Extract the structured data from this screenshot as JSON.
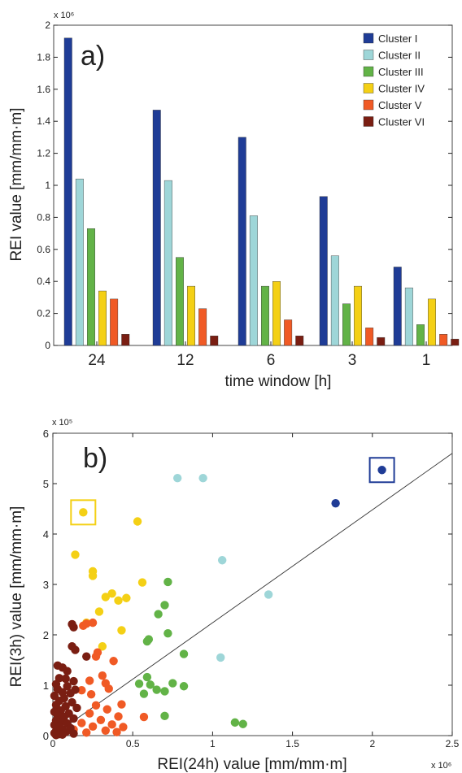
{
  "colors": {
    "Cluster I": "#1f3c96",
    "Cluster II": "#9ed6d8",
    "Cluster III": "#62b347",
    "Cluster IV": "#f4d015",
    "Cluster V": "#f05a25",
    "Cluster VI": "#7a1e12",
    "axis": "#222222",
    "frame": "#444444"
  },
  "chart_data": [
    {
      "type": "bar",
      "panel_label": "a)",
      "xlabel": "time window [h]",
      "ylabel": "REI value [mm/mm·m]",
      "y_multiplier": "x 10⁶",
      "ylim": [
        0,
        2
      ],
      "yticks": [
        0,
        0.2,
        0.4,
        0.6,
        0.8,
        1,
        1.2,
        1.4,
        1.6,
        1.8,
        2
      ],
      "ytick_labels": [
        "0",
        "0.2",
        "0.4",
        "0.6",
        "0.8",
        "1",
        "1.2",
        "1.4",
        "1.6",
        "1.8",
        "2"
      ],
      "categories": [
        "24",
        "12",
        "6",
        "3",
        "1"
      ],
      "legend_position": "top-right",
      "grid": false,
      "series": [
        {
          "name": "Cluster I",
          "values": [
            1.92,
            1.47,
            1.3,
            0.93,
            0.49
          ]
        },
        {
          "name": "Cluster II",
          "values": [
            1.04,
            1.03,
            0.81,
            0.56,
            0.36
          ]
        },
        {
          "name": "Cluster III",
          "values": [
            0.73,
            0.55,
            0.37,
            0.26,
            0.13
          ]
        },
        {
          "name": "Cluster IV",
          "values": [
            0.34,
            0.37,
            0.4,
            0.37,
            0.29
          ]
        },
        {
          "name": "Cluster V",
          "values": [
            0.29,
            0.23,
            0.16,
            0.11,
            0.07
          ]
        },
        {
          "name": "Cluster VI",
          "values": [
            0.07,
            0.06,
            0.06,
            0.05,
            0.04
          ]
        }
      ]
    },
    {
      "type": "scatter",
      "panel_label": "b)",
      "xlabel": "REI(24h) value [mm/mm·m]",
      "ylabel": "REI(3h) value [mm/mm·m]",
      "x_multiplier": "x 10⁶",
      "y_multiplier": "x 10⁵",
      "xlim": [
        0,
        2.5
      ],
      "ylim": [
        0,
        6
      ],
      "xticks": [
        0,
        0.5,
        1,
        1.5,
        2,
        2.5
      ],
      "xtick_labels": [
        "0",
        "0.5",
        "1",
        "1.5",
        "2",
        "2.5"
      ],
      "yticks": [
        0,
        1,
        2,
        3,
        4,
        5,
        6
      ],
      "ytick_labels": [
        "0",
        "1",
        "2",
        "3",
        "4",
        "5",
        "6"
      ],
      "grid": false,
      "reference_line": {
        "x": [
          0,
          2.5
        ],
        "y": [
          0,
          5.6
        ]
      },
      "highlight_boxes": [
        {
          "series": "Cluster I",
          "x": 2.06,
          "y": 5.27
        },
        {
          "series": "Cluster IV",
          "x": 0.19,
          "y": 4.43
        }
      ],
      "series": [
        {
          "name": "Cluster I",
          "points": [
            [
              2.06,
              5.27
            ],
            [
              1.77,
              4.61
            ]
          ]
        },
        {
          "name": "Cluster II",
          "points": [
            [
              0.78,
              5.11
            ],
            [
              0.94,
              5.11
            ],
            [
              1.06,
              3.48
            ],
            [
              1.35,
              2.8
            ],
            [
              1.05,
              1.55
            ]
          ]
        },
        {
          "name": "Cluster III",
          "points": [
            [
              0.72,
              3.05
            ],
            [
              0.7,
              2.59
            ],
            [
              0.66,
              2.41
            ],
            [
              0.72,
              2.03
            ],
            [
              0.6,
              1.91
            ],
            [
              0.59,
              1.87
            ],
            [
              0.82,
              1.62
            ],
            [
              0.59,
              1.16
            ],
            [
              0.54,
              1.03
            ],
            [
              0.61,
              1.01
            ],
            [
              0.75,
              1.04
            ],
            [
              0.82,
              0.98
            ],
            [
              0.65,
              0.91
            ],
            [
              0.7,
              0.88
            ],
            [
              0.57,
              0.83
            ],
            [
              0.7,
              0.39
            ],
            [
              1.14,
              0.26
            ],
            [
              1.19,
              0.23
            ]
          ]
        },
        {
          "name": "Cluster IV",
          "points": [
            [
              0.19,
              4.43
            ],
            [
              0.53,
              4.25
            ],
            [
              0.14,
              3.59
            ],
            [
              0.25,
              3.26
            ],
            [
              0.25,
              3.17
            ],
            [
              0.56,
              3.04
            ],
            [
              0.37,
              2.82
            ],
            [
              0.33,
              2.75
            ],
            [
              0.46,
              2.73
            ],
            [
              0.41,
              2.68
            ],
            [
              0.29,
              2.46
            ],
            [
              0.21,
              2.24
            ],
            [
              0.43,
              2.09
            ],
            [
              0.31,
              1.77
            ]
          ]
        },
        {
          "name": "Cluster V",
          "points": [
            [
              0.21,
              2.22
            ],
            [
              0.25,
              2.24
            ],
            [
              0.19,
              2.18
            ],
            [
              0.28,
              1.65
            ],
            [
              0.27,
              1.57
            ],
            [
              0.38,
              1.48
            ],
            [
              0.31,
              1.19
            ],
            [
              0.23,
              1.09
            ],
            [
              0.33,
              1.04
            ],
            [
              0.35,
              0.93
            ],
            [
              0.18,
              0.9
            ],
            [
              0.24,
              0.82
            ],
            [
              0.43,
              0.62
            ],
            [
              0.27,
              0.6
            ],
            [
              0.34,
              0.52
            ],
            [
              0.23,
              0.44
            ],
            [
              0.41,
              0.38
            ],
            [
              0.3,
              0.31
            ],
            [
              0.57,
              0.37
            ],
            [
              0.18,
              0.25
            ],
            [
              0.37,
              0.22
            ],
            [
              0.25,
              0.18
            ],
            [
              0.44,
              0.17
            ],
            [
              0.13,
              0.12
            ],
            [
              0.33,
              0.1
            ],
            [
              0.21,
              0.06
            ],
            [
              0.4,
              0.07
            ]
          ]
        },
        {
          "name": "Cluster VI",
          "points": [
            [
              0.12,
              2.21
            ],
            [
              0.13,
              2.15
            ],
            [
              0.12,
              1.77
            ],
            [
              0.14,
              1.7
            ],
            [
              0.21,
              1.57
            ],
            [
              0.03,
              1.39
            ],
            [
              0.06,
              1.35
            ],
            [
              0.09,
              1.28
            ],
            [
              0.04,
              1.14
            ],
            [
              0.08,
              1.13
            ],
            [
              0.13,
              1.08
            ],
            [
              0.02,
              1.02
            ],
            [
              0.09,
              0.98
            ],
            [
              0.03,
              0.92
            ],
            [
              0.14,
              0.91
            ],
            [
              0.06,
              0.86
            ],
            [
              0.11,
              0.84
            ],
            [
              0.01,
              0.79
            ],
            [
              0.07,
              0.74
            ],
            [
              0.04,
              0.69
            ],
            [
              0.12,
              0.66
            ],
            [
              0.02,
              0.61
            ],
            [
              0.08,
              0.58
            ],
            [
              0.15,
              0.55
            ],
            [
              0.05,
              0.5
            ],
            [
              0.01,
              0.47
            ],
            [
              0.1,
              0.44
            ],
            [
              0.03,
              0.4
            ],
            [
              0.07,
              0.37
            ],
            [
              0.13,
              0.34
            ],
            [
              0.02,
              0.3
            ],
            [
              0.05,
              0.27
            ],
            [
              0.09,
              0.24
            ],
            [
              0.01,
              0.21
            ],
            [
              0.04,
              0.18
            ],
            [
              0.11,
              0.15
            ],
            [
              0.06,
              0.12
            ],
            [
              0.02,
              0.09
            ],
            [
              0.08,
              0.07
            ],
            [
              0.01,
              0.05
            ],
            [
              0.04,
              0.03
            ],
            [
              0.13,
              0.04
            ],
            [
              0.06,
              0.02
            ],
            [
              0.02,
              0.01
            ]
          ]
        }
      ]
    }
  ]
}
